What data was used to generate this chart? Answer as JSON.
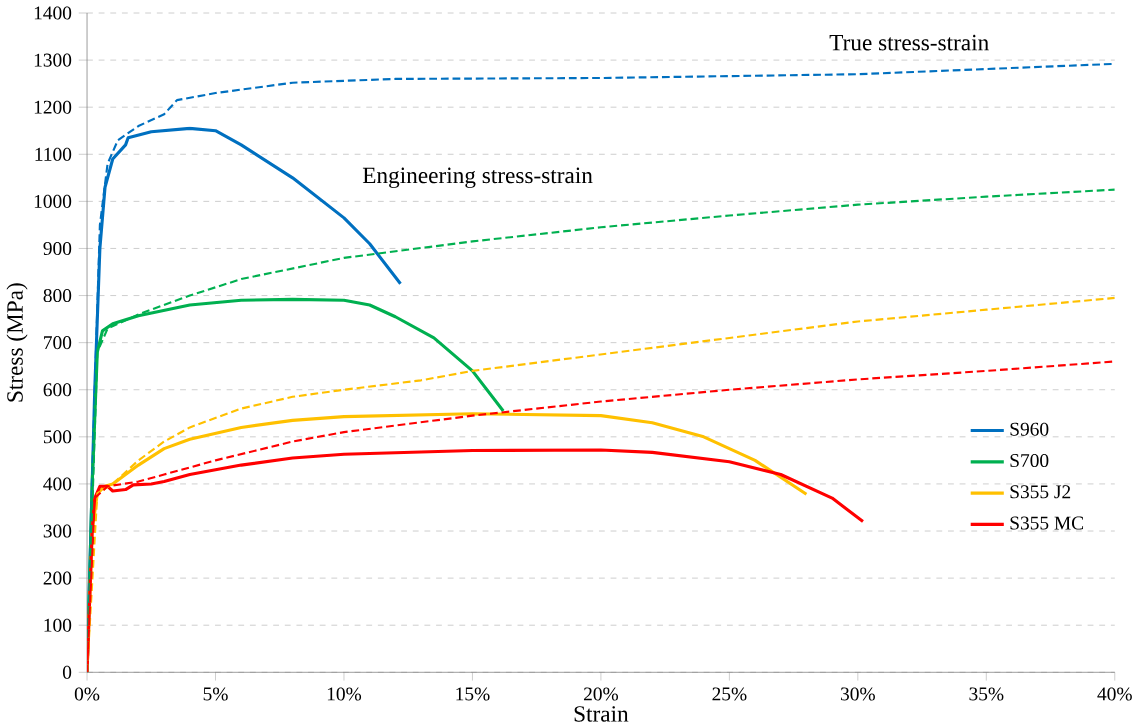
{
  "chart_data": {
    "type": "line",
    "xlabel": "Strain",
    "ylabel": "Stress (MPa)",
    "xlim": [
      0,
      40
    ],
    "ylim": [
      0,
      1400
    ],
    "xticks": [
      {
        "value": 0,
        "label": "0%"
      },
      {
        "value": 5,
        "label": "5%"
      },
      {
        "value": 10,
        "label": "10%"
      },
      {
        "value": 15,
        "label": "15%"
      },
      {
        "value": 20,
        "label": "20%"
      },
      {
        "value": 25,
        "label": "25%"
      },
      {
        "value": 30,
        "label": "30%"
      },
      {
        "value": 35,
        "label": "35%"
      },
      {
        "value": 40,
        "label": "40%"
      }
    ],
    "yticks": [
      0,
      100,
      200,
      300,
      400,
      500,
      600,
      700,
      800,
      900,
      1000,
      1100,
      1200,
      1300,
      1400
    ],
    "grid": "y",
    "legend": "bottom right",
    "marker": "none",
    "annotations": [
      "True stress-strain",
      "Engineering stress-strain"
    ],
    "series": [
      {
        "name": "S960",
        "color": "#0070c0",
        "line_style": "solid",
        "x": [
          0,
          0.3,
          0.5,
          0.7,
          1.0,
          1.5,
          1.6,
          2.5,
          4,
          5,
          6,
          8,
          10,
          11,
          12.2
        ],
        "values": [
          0,
          600,
          900,
          1030,
          1090,
          1120,
          1135,
          1148,
          1155,
          1150,
          1120,
          1050,
          965,
          910,
          825
        ]
      },
      {
        "name": "S700",
        "color": "#00b050",
        "line_style": "solid",
        "x": [
          0,
          0.2,
          0.4,
          0.6,
          1,
          2,
          4,
          6,
          8,
          10,
          11,
          12,
          13.5,
          15,
          16.2
        ],
        "values": [
          0,
          400,
          680,
          725,
          740,
          757,
          780,
          790,
          792,
          790,
          780,
          755,
          710,
          640,
          555
        ]
      },
      {
        "name": "S355 J2",
        "color": "#ffc000",
        "line_style": "solid",
        "x": [
          0,
          0.2,
          0.4,
          0.7,
          1,
          2,
          3,
          4,
          6,
          8,
          10,
          15,
          20,
          22,
          24,
          26,
          28
        ],
        "values": [
          0,
          300,
          380,
          395,
          400,
          440,
          475,
          495,
          520,
          535,
          543,
          549,
          545,
          530,
          500,
          450,
          378
        ]
      },
      {
        "name": "S355 MC",
        "color": "#ff0000",
        "line_style": "solid",
        "x": [
          0,
          0.2,
          0.3,
          0.5,
          0.8,
          1,
          1.5,
          1.8,
          2.5,
          3,
          4,
          6,
          8,
          10,
          15,
          20,
          22,
          25,
          27,
          29,
          30.2
        ],
        "values": [
          0,
          300,
          370,
          395,
          395,
          385,
          388,
          398,
          400,
          405,
          420,
          440,
          455,
          463,
          471,
          472,
          467,
          447,
          420,
          370,
          320
        ]
      },
      {
        "color": "#0070c0",
        "line_style": "dashed",
        "x": [
          0,
          0.3,
          0.5,
          0.8,
          1.2,
          2,
          3,
          3.5,
          5,
          8,
          12,
          20,
          30,
          40
        ],
        "values": [
          0,
          600,
          950,
          1080,
          1130,
          1160,
          1185,
          1215,
          1230,
          1252,
          1260,
          1262,
          1270,
          1292
        ]
      },
      {
        "color": "#00b050",
        "line_style": "dashed",
        "x": [
          0,
          0.4,
          0.8,
          2,
          4,
          6,
          10,
          15,
          20,
          25,
          30,
          35,
          40
        ],
        "values": [
          0,
          680,
          730,
          760,
          800,
          835,
          880,
          915,
          945,
          970,
          993,
          1010,
          1025
        ]
      },
      {
        "color": "#ffc000",
        "line_style": "dashed",
        "x": [
          0,
          0.4,
          1,
          2,
          3,
          4,
          6,
          8,
          10,
          13,
          15,
          20,
          25,
          30,
          35,
          40
        ],
        "values": [
          0,
          380,
          400,
          450,
          490,
          520,
          560,
          585,
          600,
          620,
          640,
          675,
          710,
          745,
          770,
          795
        ]
      },
      {
        "color": "#ff0000",
        "line_style": "dashed",
        "x": [
          0,
          0.3,
          0.8,
          2,
          3,
          5,
          8,
          10,
          15,
          20,
          25,
          30,
          35,
          40
        ],
        "values": [
          0,
          370,
          395,
          405,
          420,
          450,
          490,
          510,
          545,
          575,
          600,
          622,
          640,
          660
        ]
      }
    ]
  }
}
